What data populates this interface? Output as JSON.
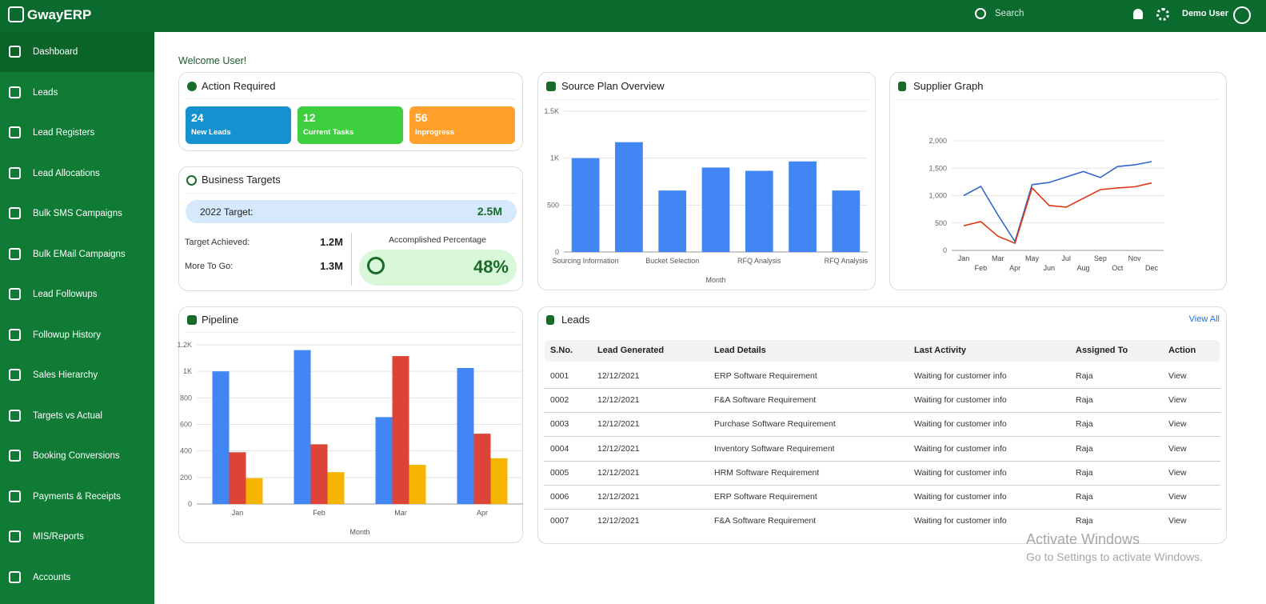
{
  "header": {
    "logo": "GwayERP",
    "search": "Search",
    "user": "Demo User"
  },
  "sidebar": {
    "items": [
      "Dashboard",
      "Leads",
      "Lead Registers",
      "Lead Allocations",
      "Bulk SMS Campaigns",
      "Bulk EMail Campaigns",
      "Lead Followups",
      "Followup History",
      "Sales Hierarchy",
      "Targets vs Actual",
      "Booking Conversions",
      "Payments & Receipts",
      "MIS/Reports",
      "Accounts"
    ]
  },
  "welcome": "Welcome User!",
  "action_required": {
    "title": "Action Required",
    "cards": [
      {
        "value": 24,
        "label": "New Leads",
        "color": "#1591d0"
      },
      {
        "value": 12,
        "label": "Current Tasks",
        "color": "#3ecf3e"
      },
      {
        "value": 56,
        "label": "Inprogress",
        "color": "#ffa12c"
      }
    ]
  },
  "business_targets": {
    "title": "Business Targets",
    "target_label": "2022 Target:",
    "target_value": "2.5M",
    "achieved_label": "Target Achieved:",
    "achieved_value": "1.2M",
    "more_label": "More To Go:",
    "more_value": "1.3M",
    "accomplished_label": "Accomplished Percentage",
    "accomplished_value": "48%"
  },
  "leads": {
    "title": "Leads",
    "view_all": "View All",
    "columns": [
      "S.No.",
      "Lead Generated",
      "Lead Details",
      "Last Activity",
      "Assigned To",
      "Action"
    ],
    "rows": [
      [
        "0001",
        "12/12/2021",
        "ERP Software Requirement",
        "Waiting for customer info",
        "Raja",
        "View"
      ],
      [
        "0002",
        "12/12/2021",
        "F&A Software Requirement",
        "Waiting for customer info",
        "Raja",
        "View"
      ],
      [
        "0003",
        "12/12/2021",
        "Purchase Software Requirement",
        "Waiting for customer info",
        "Raja",
        "View"
      ],
      [
        "0004",
        "12/12/2021",
        "Inventory Software Requirement",
        "Waiting for customer info",
        "Raja",
        "View"
      ],
      [
        "0005",
        "12/12/2021",
        "HRM Software Requirement",
        "Waiting for customer info",
        "Raja",
        "View"
      ],
      [
        "0006",
        "12/12/2021",
        "ERP Software Requirement",
        "Waiting for customer info",
        "Raja",
        "View"
      ],
      [
        "0007",
        "12/12/2021",
        "F&A Software Requirement",
        "Waiting for customer info",
        "Raja",
        "View"
      ]
    ]
  },
  "watermark": {
    "title": "Activate Windows",
    "text": "Go to Settings to activate Windows."
  },
  "chart_data": [
    {
      "type": "bar",
      "title": "Source Plan Overview",
      "x_label": "Month",
      "categories": [
        "Sourcing Information",
        null,
        "Bucket Selection",
        null,
        "RFQ Analysis",
        null,
        "RFQ Analysis"
      ],
      "values": [
        1000,
        1170,
        655,
        900,
        865,
        965,
        655
      ],
      "color": "#4285f4",
      "ylim": [
        0,
        1500
      ],
      "yticks": [
        0,
        500,
        {
          "value": 1000,
          "label": "1K"
        },
        {
          "value": 1500,
          "label": "1.5K"
        }
      ],
      "grid": true
    },
    {
      "type": "line",
      "title": "Supplier Graph",
      "categories": [
        "Jan",
        "Feb",
        "Mar",
        "Apr",
        "May",
        "Jun",
        "Jul",
        "Aug",
        "Sep",
        "Oct",
        "Nov",
        "Dec"
      ],
      "series": [
        {
          "color": "#3366cc",
          "values": [
            1000,
            1170,
            650,
            160,
            1200,
            1240,
            1340,
            1440,
            1330,
            1530,
            1560,
            1620
          ]
        },
        {
          "color": "#dc3912",
          "values": [
            450,
            525,
            260,
            130,
            1140,
            820,
            790,
            950,
            1110,
            1140,
            1160,
            1230
          ]
        }
      ],
      "ylim": [
        0,
        2000
      ],
      "yticks": [
        0,
        500,
        {
          "value": 1000,
          "label": "1,000"
        },
        {
          "value": 1500,
          "label": "1,500"
        },
        {
          "value": 2000,
          "label": "2,000"
        }
      ],
      "grid": true
    },
    {
      "type": "bar",
      "title": "Pipeline",
      "x_label": "Month",
      "categories": [
        "Jan",
        "Feb",
        "Mar",
        "Apr"
      ],
      "series": [
        {
          "color": "#4285f4",
          "values": [
            1000,
            1160,
            655,
            1025
          ]
        },
        {
          "color": "#db4437",
          "values": [
            390,
            450,
            1115,
            530
          ]
        },
        {
          "color": "#f4b400",
          "values": [
            195,
            240,
            295,
            345
          ]
        }
      ],
      "ylim": [
        0,
        1200
      ],
      "yticks": [
        0,
        200,
        400,
        600,
        800,
        {
          "value": 1000,
          "label": "1K"
        },
        {
          "value": 1200,
          "label": "1.2K"
        }
      ],
      "grid": true
    }
  ]
}
